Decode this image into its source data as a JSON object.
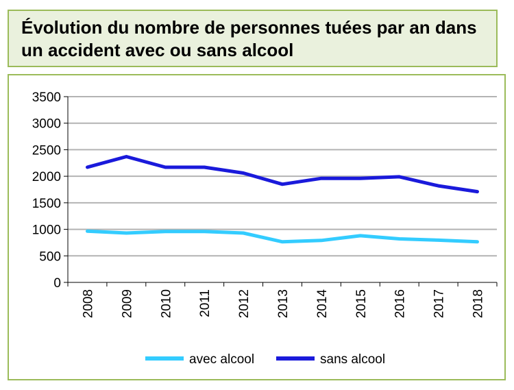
{
  "chart_data": {
    "type": "line",
    "title": "Évolution du nombre de personnes tuées par an dans un accident avec ou sans alcool",
    "categories": [
      "2008",
      "2009",
      "2010",
      "2011",
      "2012",
      "2013",
      "2014",
      "2015",
      "2016",
      "2017",
      "2018"
    ],
    "series": [
      {
        "name": "avec alcool",
        "color": "#33ccff",
        "values": [
          965,
          930,
          960,
          960,
          930,
          765,
          790,
          880,
          820,
          795,
          765
        ]
      },
      {
        "name": "sans alcool",
        "color": "#1a1adb",
        "values": [
          2170,
          2370,
          2170,
          2170,
          2060,
          1850,
          1960,
          1960,
          1990,
          1820,
          1710
        ]
      }
    ],
    "ylim": [
      0,
      3500
    ],
    "yticks": [
      0,
      500,
      1000,
      1500,
      2000,
      2500,
      3000,
      3500
    ],
    "grid": true,
    "legend_position": "bottom"
  },
  "colors": {
    "title_bg": "#eaf1dd",
    "border": "#9bbb59",
    "grid": "#b3b3b3"
  }
}
